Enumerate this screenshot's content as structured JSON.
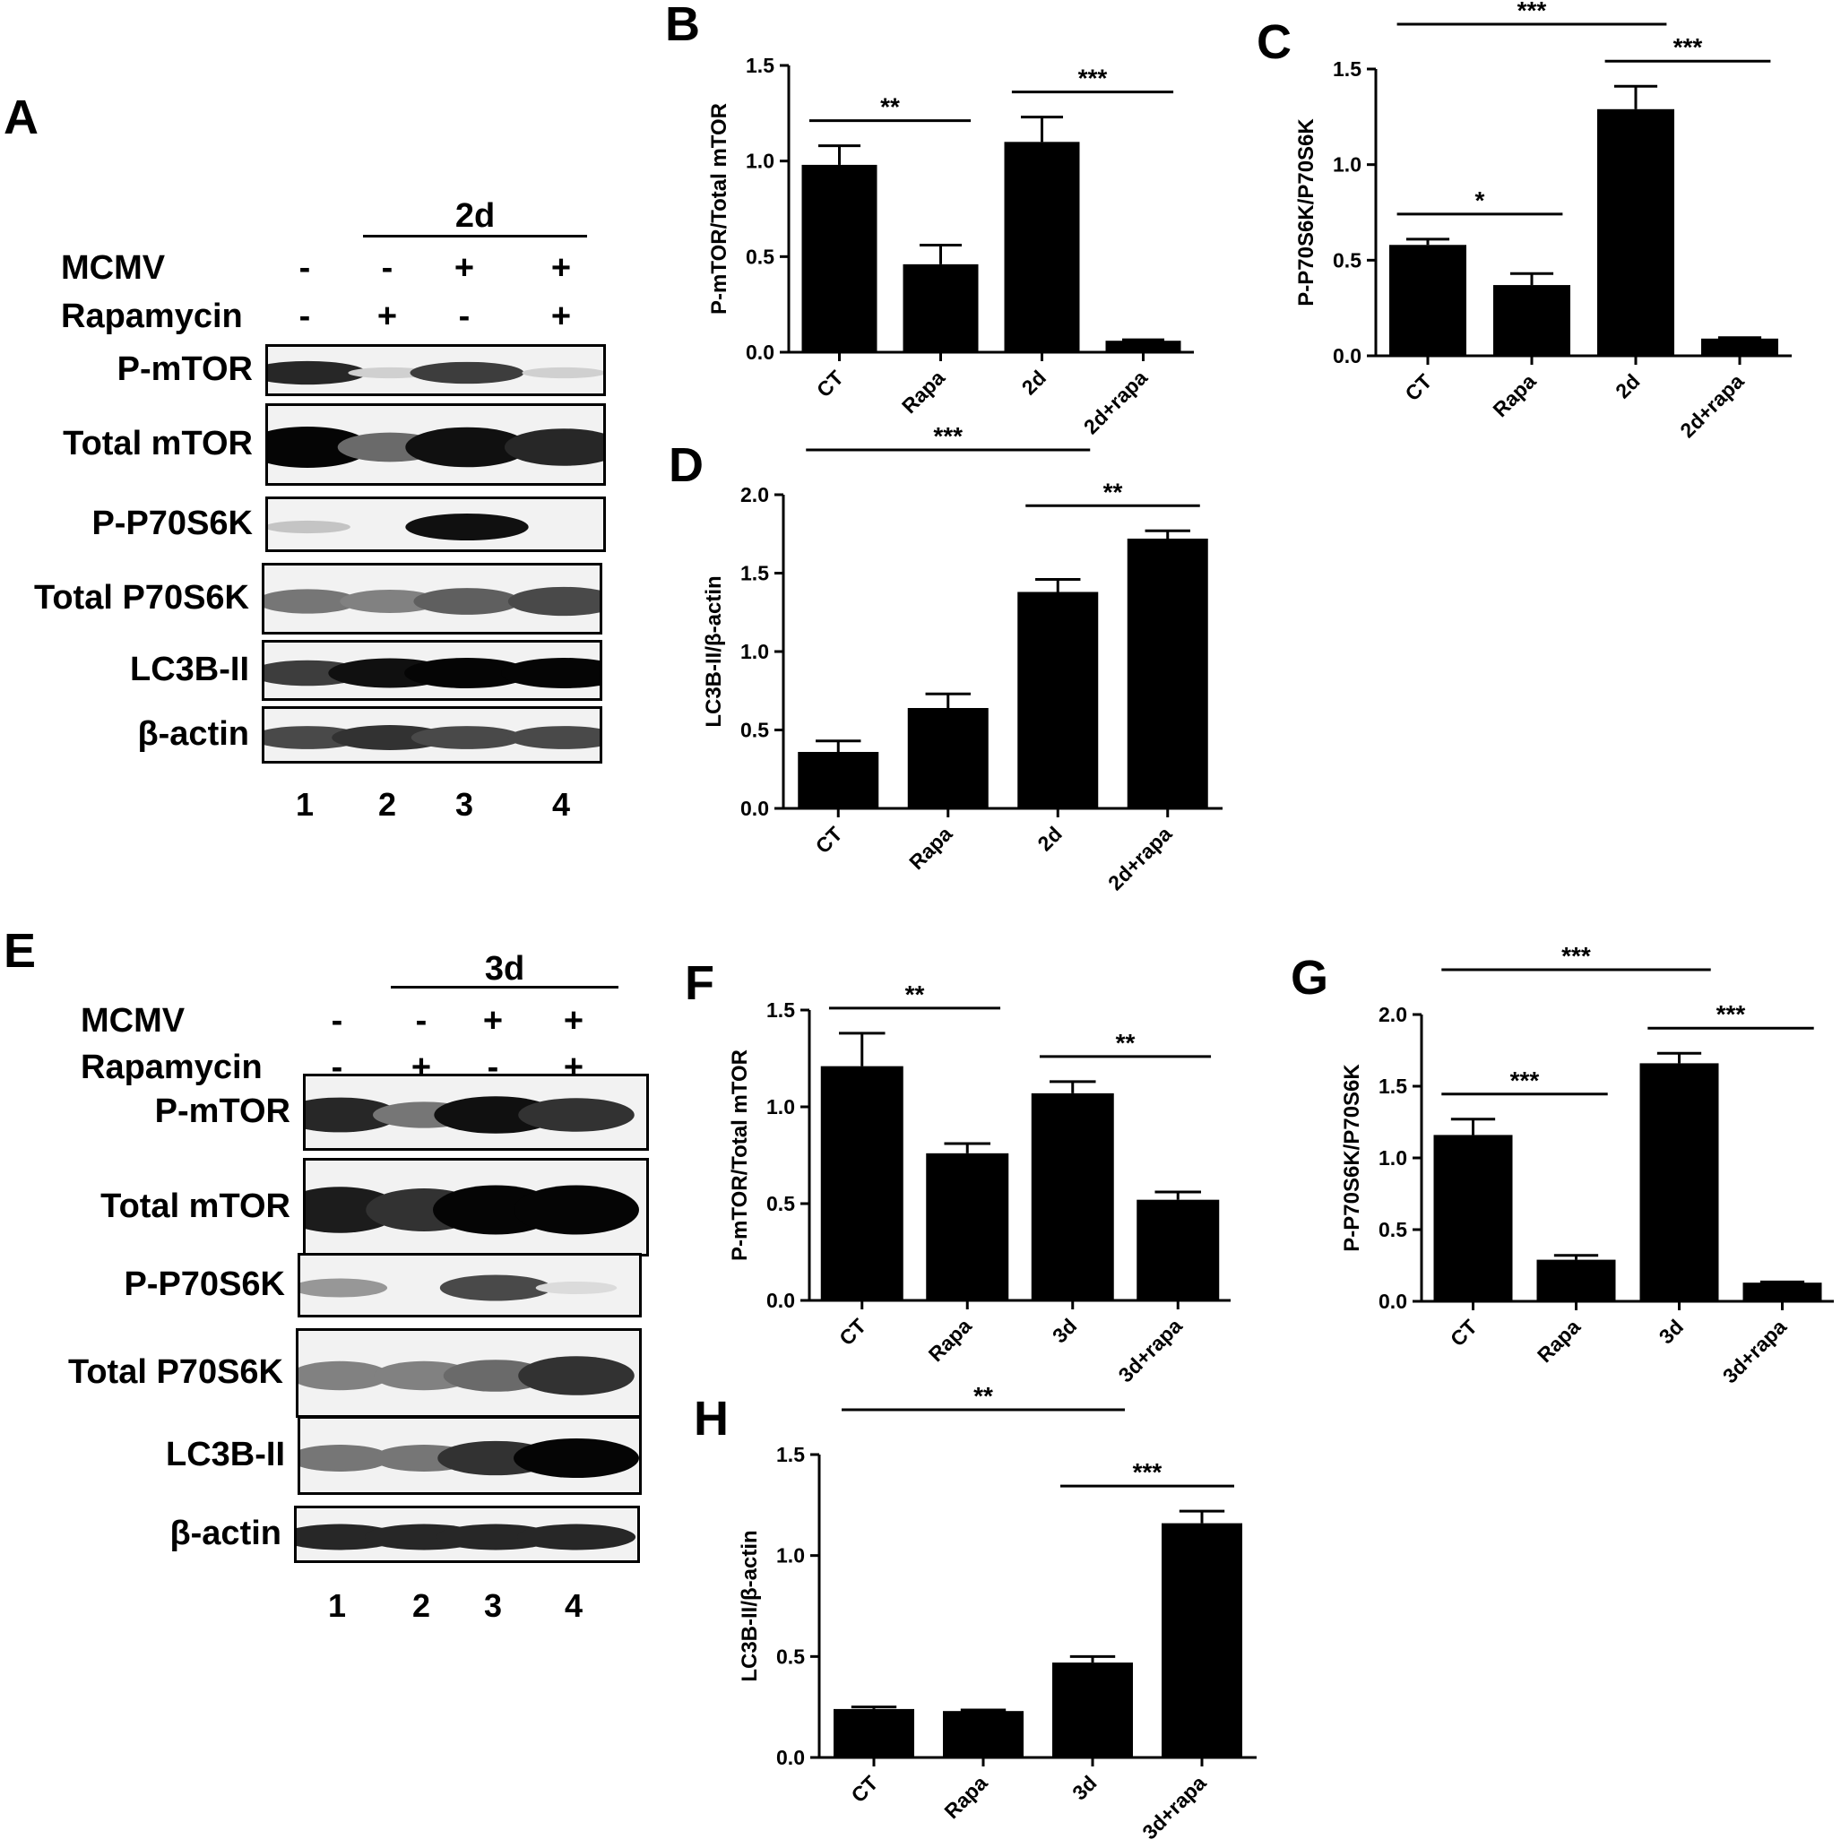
{
  "figure_letters": {
    "A": "A",
    "B": "B",
    "C": "C",
    "D": "D",
    "E": "E",
    "F": "F",
    "G": "G",
    "H": "H"
  },
  "blots": [
    {
      "timepoint": "2d",
      "mcmv_label": "MCMV",
      "rapamycin_label": "Rapamycin",
      "mcmv_signs": [
        "-",
        "-",
        "+",
        "+"
      ],
      "rapamycin_signs": [
        "-",
        "+",
        "-",
        "+"
      ],
      "rows": [
        {
          "label": "P-mTOR",
          "intensity": [
            0.85,
            0.1,
            0.75,
            0.1
          ]
        },
        {
          "label": "Total mTOR",
          "intensity": [
            1.0,
            0.55,
            0.95,
            0.85
          ]
        },
        {
          "label": "P-P70S6K",
          "intensity": [
            0.15,
            0.0,
            0.95,
            0.0
          ]
        },
        {
          "label": "Total P70S6K",
          "intensity": [
            0.5,
            0.45,
            0.6,
            0.7
          ]
        },
        {
          "label": "LC3B-II",
          "intensity": [
            0.75,
            0.95,
            1.0,
            1.0
          ]
        },
        {
          "label": "β-actin",
          "intensity": [
            0.7,
            0.8,
            0.7,
            0.7
          ]
        }
      ],
      "lanes": [
        "1",
        "2",
        "3",
        "4"
      ]
    },
    {
      "timepoint": "3d",
      "mcmv_label": "MCMV",
      "rapamycin_label": "Rapamycin",
      "mcmv_signs": [
        "-",
        "-",
        "+",
        "+"
      ],
      "rapamycin_signs": [
        "-",
        "+",
        "-",
        "+"
      ],
      "rows": [
        {
          "label": "P-mTOR",
          "intensity": [
            0.85,
            0.5,
            0.95,
            0.8
          ]
        },
        {
          "label": "Total mTOR",
          "intensity": [
            0.9,
            0.8,
            1.0,
            1.0
          ]
        },
        {
          "label": "P-P70S6K",
          "intensity": [
            0.35,
            0.0,
            0.7,
            0.05
          ]
        },
        {
          "label": "Total P70S6K",
          "intensity": [
            0.45,
            0.45,
            0.55,
            0.8
          ]
        },
        {
          "label": "LC3B-II",
          "intensity": [
            0.5,
            0.5,
            0.8,
            1.0
          ]
        },
        {
          "label": "β-actin",
          "intensity": [
            0.85,
            0.85,
            0.85,
            0.85
          ]
        }
      ],
      "lanes": [
        "1",
        "2",
        "3",
        "4"
      ]
    }
  ],
  "chart_data": [
    {
      "panel": "B",
      "type": "bar",
      "ylabel": "P-mTOR/Total mTOR",
      "categories": [
        "CT",
        "Rapa",
        "2d",
        "2d+rapa"
      ],
      "values": [
        0.98,
        0.46,
        1.1,
        0.06
      ],
      "errors": [
        0.1,
        0.1,
        0.13,
        0.005
      ],
      "ylim": [
        0,
        1.5
      ],
      "yticks": [
        "0.0",
        "0.5",
        "1.0",
        "1.5"
      ],
      "significance": [
        {
          "from": 0,
          "to": 1,
          "label": "**"
        },
        {
          "from": 2,
          "to": 3,
          "label": "***"
        }
      ]
    },
    {
      "panel": "C",
      "type": "bar",
      "ylabel": "P-P70S6K/P70S6K",
      "categories": [
        "CT",
        "Rapa",
        "2d",
        "2d+rapa"
      ],
      "values": [
        0.58,
        0.37,
        1.29,
        0.09
      ],
      "errors": [
        0.03,
        0.06,
        0.12,
        0.005
      ],
      "ylim": [
        0,
        1.5
      ],
      "yticks": [
        "0.0",
        "0.5",
        "1.0",
        "1.5"
      ],
      "significance": [
        {
          "from": 0,
          "to": 1,
          "label": "*"
        },
        {
          "from": 2,
          "to": 3,
          "label": "***"
        },
        {
          "from": 0,
          "to": 2,
          "label": "***"
        }
      ]
    },
    {
      "panel": "D",
      "type": "bar",
      "ylabel": "LC3B-II/β-actin",
      "categories": [
        "CT",
        "Rapa",
        "2d",
        "2d+rapa"
      ],
      "values": [
        0.36,
        0.64,
        1.38,
        1.72
      ],
      "errors": [
        0.07,
        0.09,
        0.08,
        0.05
      ],
      "ylim": [
        0,
        2.0
      ],
      "yticks": [
        "0.0",
        "0.5",
        "1.0",
        "1.5",
        "2.0"
      ],
      "significance": [
        {
          "from": 0,
          "to": 2,
          "label": "***"
        },
        {
          "from": 2,
          "to": 3,
          "label": "**"
        }
      ]
    },
    {
      "panel": "F",
      "type": "bar",
      "ylabel": "P-mTOR/Total mTOR",
      "categories": [
        "CT",
        "Rapa",
        "3d",
        "3d+rapa"
      ],
      "values": [
        1.21,
        0.76,
        1.07,
        0.52
      ],
      "errors": [
        0.17,
        0.05,
        0.06,
        0.04
      ],
      "ylim": [
        0,
        1.5
      ],
      "yticks": [
        "0.0",
        "0.5",
        "1.0",
        "1.5"
      ],
      "significance": [
        {
          "from": 0,
          "to": 1,
          "label": "**"
        },
        {
          "from": 2,
          "to": 3,
          "label": "**"
        }
      ]
    },
    {
      "panel": "G",
      "type": "bar",
      "ylabel": "P-P70S6K/P70S6K",
      "categories": [
        "CT",
        "Rapa",
        "3d",
        "3d+rapa"
      ],
      "values": [
        1.16,
        0.29,
        1.66,
        0.13
      ],
      "errors": [
        0.11,
        0.03,
        0.07,
        0.005
      ],
      "ylim": [
        0,
        2.0
      ],
      "yticks": [
        "0.0",
        "0.5",
        "1.0",
        "1.5",
        "2.0"
      ],
      "significance": [
        {
          "from": 0,
          "to": 1,
          "label": "***"
        },
        {
          "from": 2,
          "to": 3,
          "label": "***"
        },
        {
          "from": 0,
          "to": 2,
          "label": "***"
        }
      ]
    },
    {
      "panel": "H",
      "type": "bar",
      "ylabel": "LC3B-II/β-actin",
      "categories": [
        "CT",
        "Rapa",
        "3d",
        "3d+rapa"
      ],
      "values": [
        0.24,
        0.23,
        0.47,
        1.16
      ],
      "errors": [
        0.01,
        0.005,
        0.03,
        0.06
      ],
      "ylim": [
        0,
        1.5
      ],
      "yticks": [
        "0.0",
        "0.5",
        "1.0",
        "1.5"
      ],
      "significance": [
        {
          "from": 0,
          "to": 2,
          "label": "**"
        },
        {
          "from": 2,
          "to": 3,
          "label": "***"
        }
      ]
    }
  ]
}
